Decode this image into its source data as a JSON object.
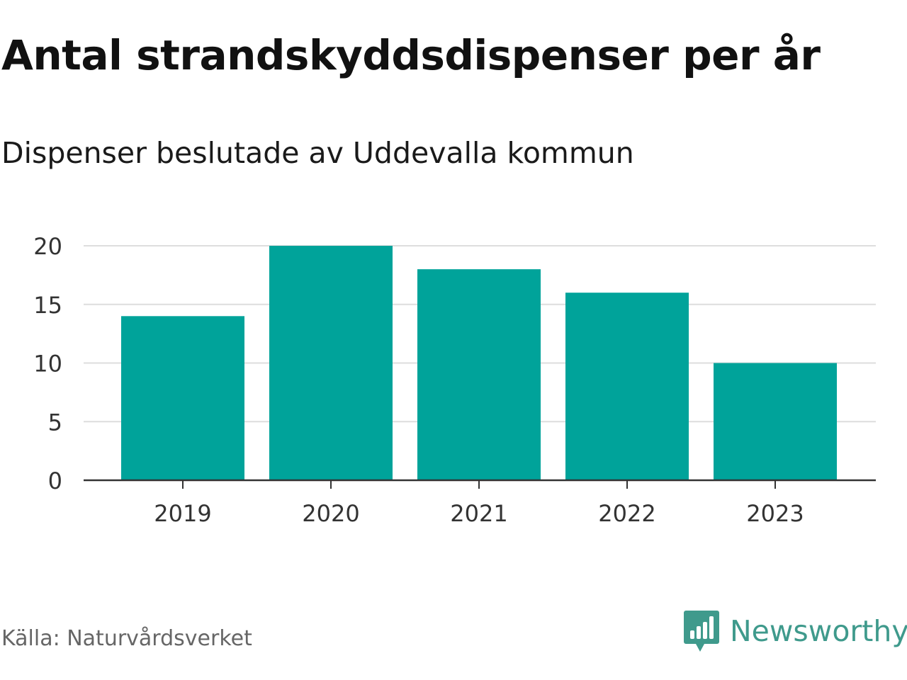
{
  "header": {
    "title": "Antal strandskyddsdispenser per år",
    "subtitle": "Dispenser beslutade av Uddevalla kommun"
  },
  "chart_data": {
    "type": "bar",
    "title": "Antal strandskyddsdispenser per år",
    "subtitle": "Dispenser beslutade av Uddevalla kommun",
    "xlabel": "",
    "ylabel": "",
    "categories": [
      "2019",
      "2020",
      "2021",
      "2022",
      "2023"
    ],
    "values": [
      14,
      20,
      18,
      16,
      10
    ],
    "ylim": [
      0,
      20
    ],
    "yticks": [
      0,
      5,
      10,
      15,
      20
    ],
    "grid": true,
    "legend": "none",
    "bar_color": "#00a39a"
  },
  "footer": {
    "source": "Källa: Naturvårdsverket",
    "brand": "Newsworthy",
    "brand_color": "#3f9a8c",
    "brand_icon": "bar-chart-speech-bubble-icon"
  }
}
